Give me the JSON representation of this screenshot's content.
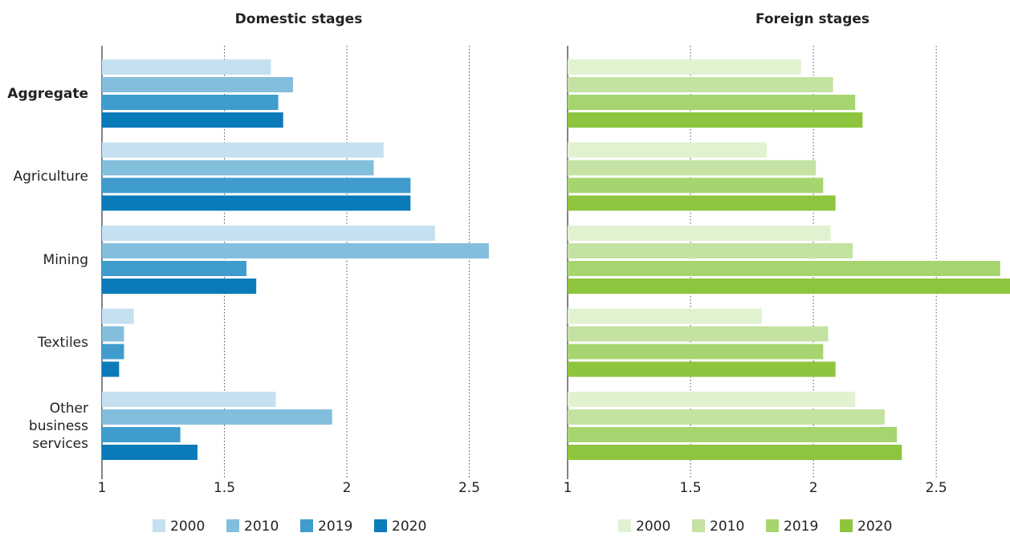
{
  "chart_data": [
    {
      "type": "bar",
      "orientation": "horizontal",
      "title": "Domestic stages",
      "categories": [
        "Aggregate",
        "Agriculture",
        "Mining",
        "Textiles",
        "Other business services"
      ],
      "series": [
        {
          "name": "2000",
          "color": "#c5e0f0",
          "values": [
            1.69,
            2.15,
            2.36,
            1.13,
            1.71
          ]
        },
        {
          "name": "2010",
          "color": "#84bedd",
          "values": [
            1.78,
            2.11,
            2.58,
            1.09,
            1.94
          ]
        },
        {
          "name": "2019",
          "color": "#3f9ccc",
          "values": [
            1.72,
            2.26,
            1.59,
            1.09,
            1.32
          ]
        },
        {
          "name": "2020",
          "color": "#0a7bb8",
          "values": [
            1.74,
            2.26,
            1.63,
            1.07,
            1.39
          ]
        }
      ],
      "xlim": [
        1,
        2.6
      ],
      "xticks": [
        1,
        1.5,
        2,
        2.5
      ],
      "grid": true
    },
    {
      "type": "bar",
      "orientation": "horizontal",
      "title": "Foreign stages",
      "series": [
        {
          "name": "2000",
          "color": "#e1f2d0",
          "values": [
            1.95,
            1.81,
            2.07,
            1.79,
            2.17
          ]
        },
        {
          "name": "2010",
          "color": "#c4e2a1",
          "values": [
            2.08,
            2.01,
            2.16,
            2.06,
            2.29
          ]
        },
        {
          "name": "2019",
          "color": "#a6d56f",
          "values": [
            2.17,
            2.04,
            2.76,
            2.04,
            2.34
          ]
        },
        {
          "name": "2020",
          "color": "#8ec53f",
          "values": [
            2.2,
            2.09,
            2.8,
            2.09,
            2.36
          ]
        }
      ],
      "xlim": [
        1,
        2.8
      ],
      "xticks": [
        1,
        1.5,
        2,
        2.5
      ],
      "grid": true
    }
  ]
}
